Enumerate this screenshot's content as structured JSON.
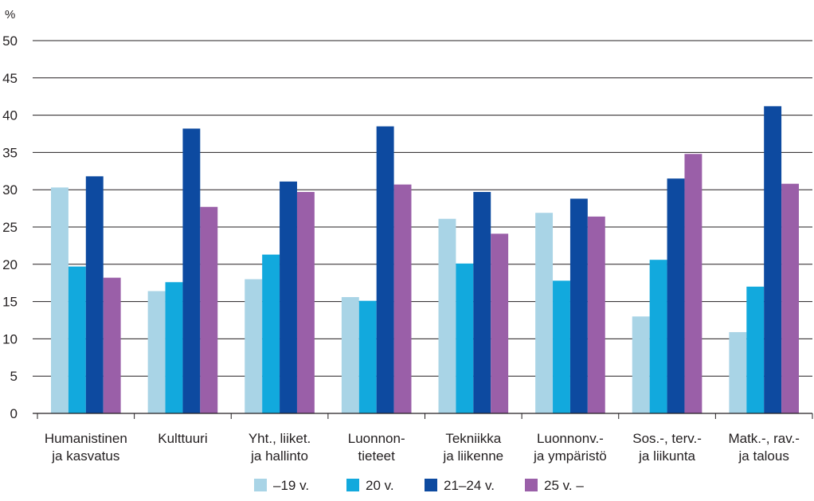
{
  "chart_data": {
    "type": "bar",
    "unit_label": "%",
    "ylim": [
      0,
      50
    ],
    "yticks": [
      0,
      5,
      10,
      15,
      20,
      25,
      30,
      35,
      40,
      45,
      50
    ],
    "grid": true,
    "legend_position": "bottom",
    "categories": [
      [
        "Humanistinen",
        "ja kasvatus"
      ],
      [
        "Kulttuuri"
      ],
      [
        "Yht., liiket.",
        "ja hallinto"
      ],
      [
        "Luonnon-",
        "tieteet"
      ],
      [
        "Tekniikka",
        "ja liikenne"
      ],
      [
        "Luonnonv.-",
        "ja ympäristö"
      ],
      [
        "Sos.-, terv.-",
        "ja liikunta"
      ],
      [
        "Matk.-, rav.-",
        "ja talous"
      ]
    ],
    "series": [
      {
        "name": "–19 v.",
        "color": "#a9d4e6",
        "values": [
          30.3,
          16.4,
          18.0,
          15.6,
          26.1,
          26.9,
          13.0,
          10.9
        ]
      },
      {
        "name": "20 v.",
        "color": "#12a9dd",
        "values": [
          19.7,
          17.6,
          21.3,
          15.1,
          20.1,
          17.8,
          20.6,
          17.0
        ]
      },
      {
        "name": "21–24 v.",
        "color": "#0d4aa0",
        "values": [
          31.8,
          38.2,
          31.1,
          38.5,
          29.7,
          28.8,
          31.5,
          41.2
        ]
      },
      {
        "name": "25 v. –",
        "color": "#9a5fa8",
        "values": [
          18.2,
          27.7,
          29.7,
          30.7,
          24.1,
          26.4,
          34.8,
          30.8
        ]
      }
    ]
  }
}
